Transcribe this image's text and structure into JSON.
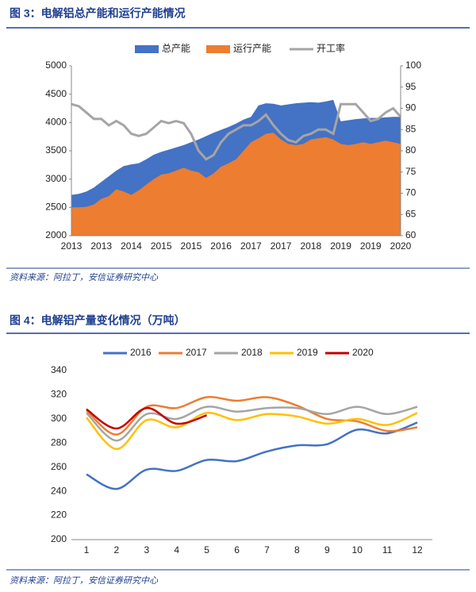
{
  "chart_data": [
    {
      "type": "area",
      "title": "图 3：电解铝总产能和运行产能情况",
      "source": "资料来源：阿拉丁，安信证券研究中心",
      "categories": [
        "2013",
        null,
        null,
        null,
        "2013",
        null,
        null,
        null,
        "2014",
        null,
        null,
        null,
        "2015",
        null,
        null,
        null,
        "2015",
        null,
        null,
        null,
        "2016",
        null,
        null,
        null,
        "2017",
        null,
        null,
        null,
        "2017",
        null,
        null,
        null,
        "2018",
        null,
        null,
        null,
        "2019",
        null,
        null,
        null,
        "2019",
        null,
        null,
        null,
        "2020"
      ],
      "series": [
        {
          "name": "总产能",
          "type": "area",
          "color": "#4472c4",
          "values": [
            2720,
            2740,
            2780,
            2850,
            2950,
            3050,
            3150,
            3230,
            3260,
            3280,
            3350,
            3430,
            3480,
            3520,
            3560,
            3600,
            3650,
            3700,
            3760,
            3820,
            3870,
            3920,
            3980,
            4050,
            4100,
            4300,
            4340,
            4330,
            4300,
            4320,
            4340,
            4350,
            4360,
            4350,
            4370,
            4400,
            4020,
            4040,
            4060,
            4070,
            4080,
            4080,
            4090,
            4100,
            4100
          ]
        },
        {
          "name": "运行产能",
          "type": "area",
          "color": "#ed7d31",
          "values": [
            2500,
            2500,
            2510,
            2550,
            2650,
            2700,
            2820,
            2780,
            2720,
            2800,
            2900,
            3000,
            3080,
            3100,
            3150,
            3200,
            3150,
            3120,
            3020,
            3100,
            3220,
            3280,
            3350,
            3500,
            3650,
            3720,
            3800,
            3820,
            3700,
            3620,
            3600,
            3620,
            3700,
            3720,
            3740,
            3700,
            3620,
            3600,
            3620,
            3650,
            3620,
            3650,
            3680,
            3650,
            3620
          ]
        },
        {
          "name": "开工率",
          "type": "line",
          "axis": "y2",
          "color": "#a5a5a5",
          "values": [
            91,
            90.5,
            89,
            87.5,
            87.5,
            86,
            87,
            86,
            84,
            83.5,
            84,
            85.5,
            87,
            86.5,
            87,
            86.5,
            84,
            80,
            78,
            79,
            82,
            84,
            85,
            86,
            86,
            87,
            88.5,
            86,
            84,
            82.5,
            82,
            83.5,
            84,
            85,
            85,
            84,
            91,
            91,
            91,
            89,
            87,
            87.5,
            89,
            90,
            88
          ]
        }
      ],
      "ylim": [
        2000,
        5000
      ],
      "yticks": [
        2000,
        2500,
        3000,
        3500,
        4000,
        4500,
        5000
      ],
      "y2lim": [
        60,
        100
      ],
      "y2ticks": [
        60,
        65,
        70,
        75,
        80,
        85,
        90,
        95,
        100
      ],
      "legend": "top",
      "grid": false
    },
    {
      "type": "line",
      "title": "图 4：电解铝产量变化情况（万吨）",
      "source": "资料来源：阿拉丁，安信证券研究中心",
      "categories": [
        "1",
        "2",
        "3",
        "4",
        "5",
        "6",
        "7",
        "8",
        "9",
        "10",
        "11",
        "12"
      ],
      "series": [
        {
          "name": "2016",
          "color": "#4472c4",
          "values": [
            254,
            242,
            258,
            257,
            266,
            265,
            273,
            278,
            279,
            291,
            288,
            297
          ]
        },
        {
          "name": "2017",
          "color": "#ed7d31",
          "values": [
            307,
            287,
            310,
            309,
            318,
            315,
            318,
            311,
            300,
            298,
            290,
            293
          ]
        },
        {
          "name": "2018",
          "color": "#a5a5a5",
          "values": [
            305,
            282,
            304,
            300,
            310,
            306,
            309,
            309,
            304,
            310,
            304,
            310
          ]
        },
        {
          "name": "2019",
          "color": "#ffc000",
          "values": [
            301,
            275,
            299,
            293,
            305,
            299,
            304,
            302,
            296,
            300,
            295,
            305
          ]
        },
        {
          "name": "2020",
          "color": "#c00000",
          "values": [
            308,
            292,
            309,
            296,
            303,
            null,
            null,
            null,
            null,
            null,
            null,
            null
          ]
        }
      ],
      "ylim": [
        200,
        340
      ],
      "yticks": [
        200,
        220,
        240,
        260,
        280,
        300,
        320,
        340
      ],
      "legend": "top",
      "grid": false,
      "smooth": true
    }
  ]
}
